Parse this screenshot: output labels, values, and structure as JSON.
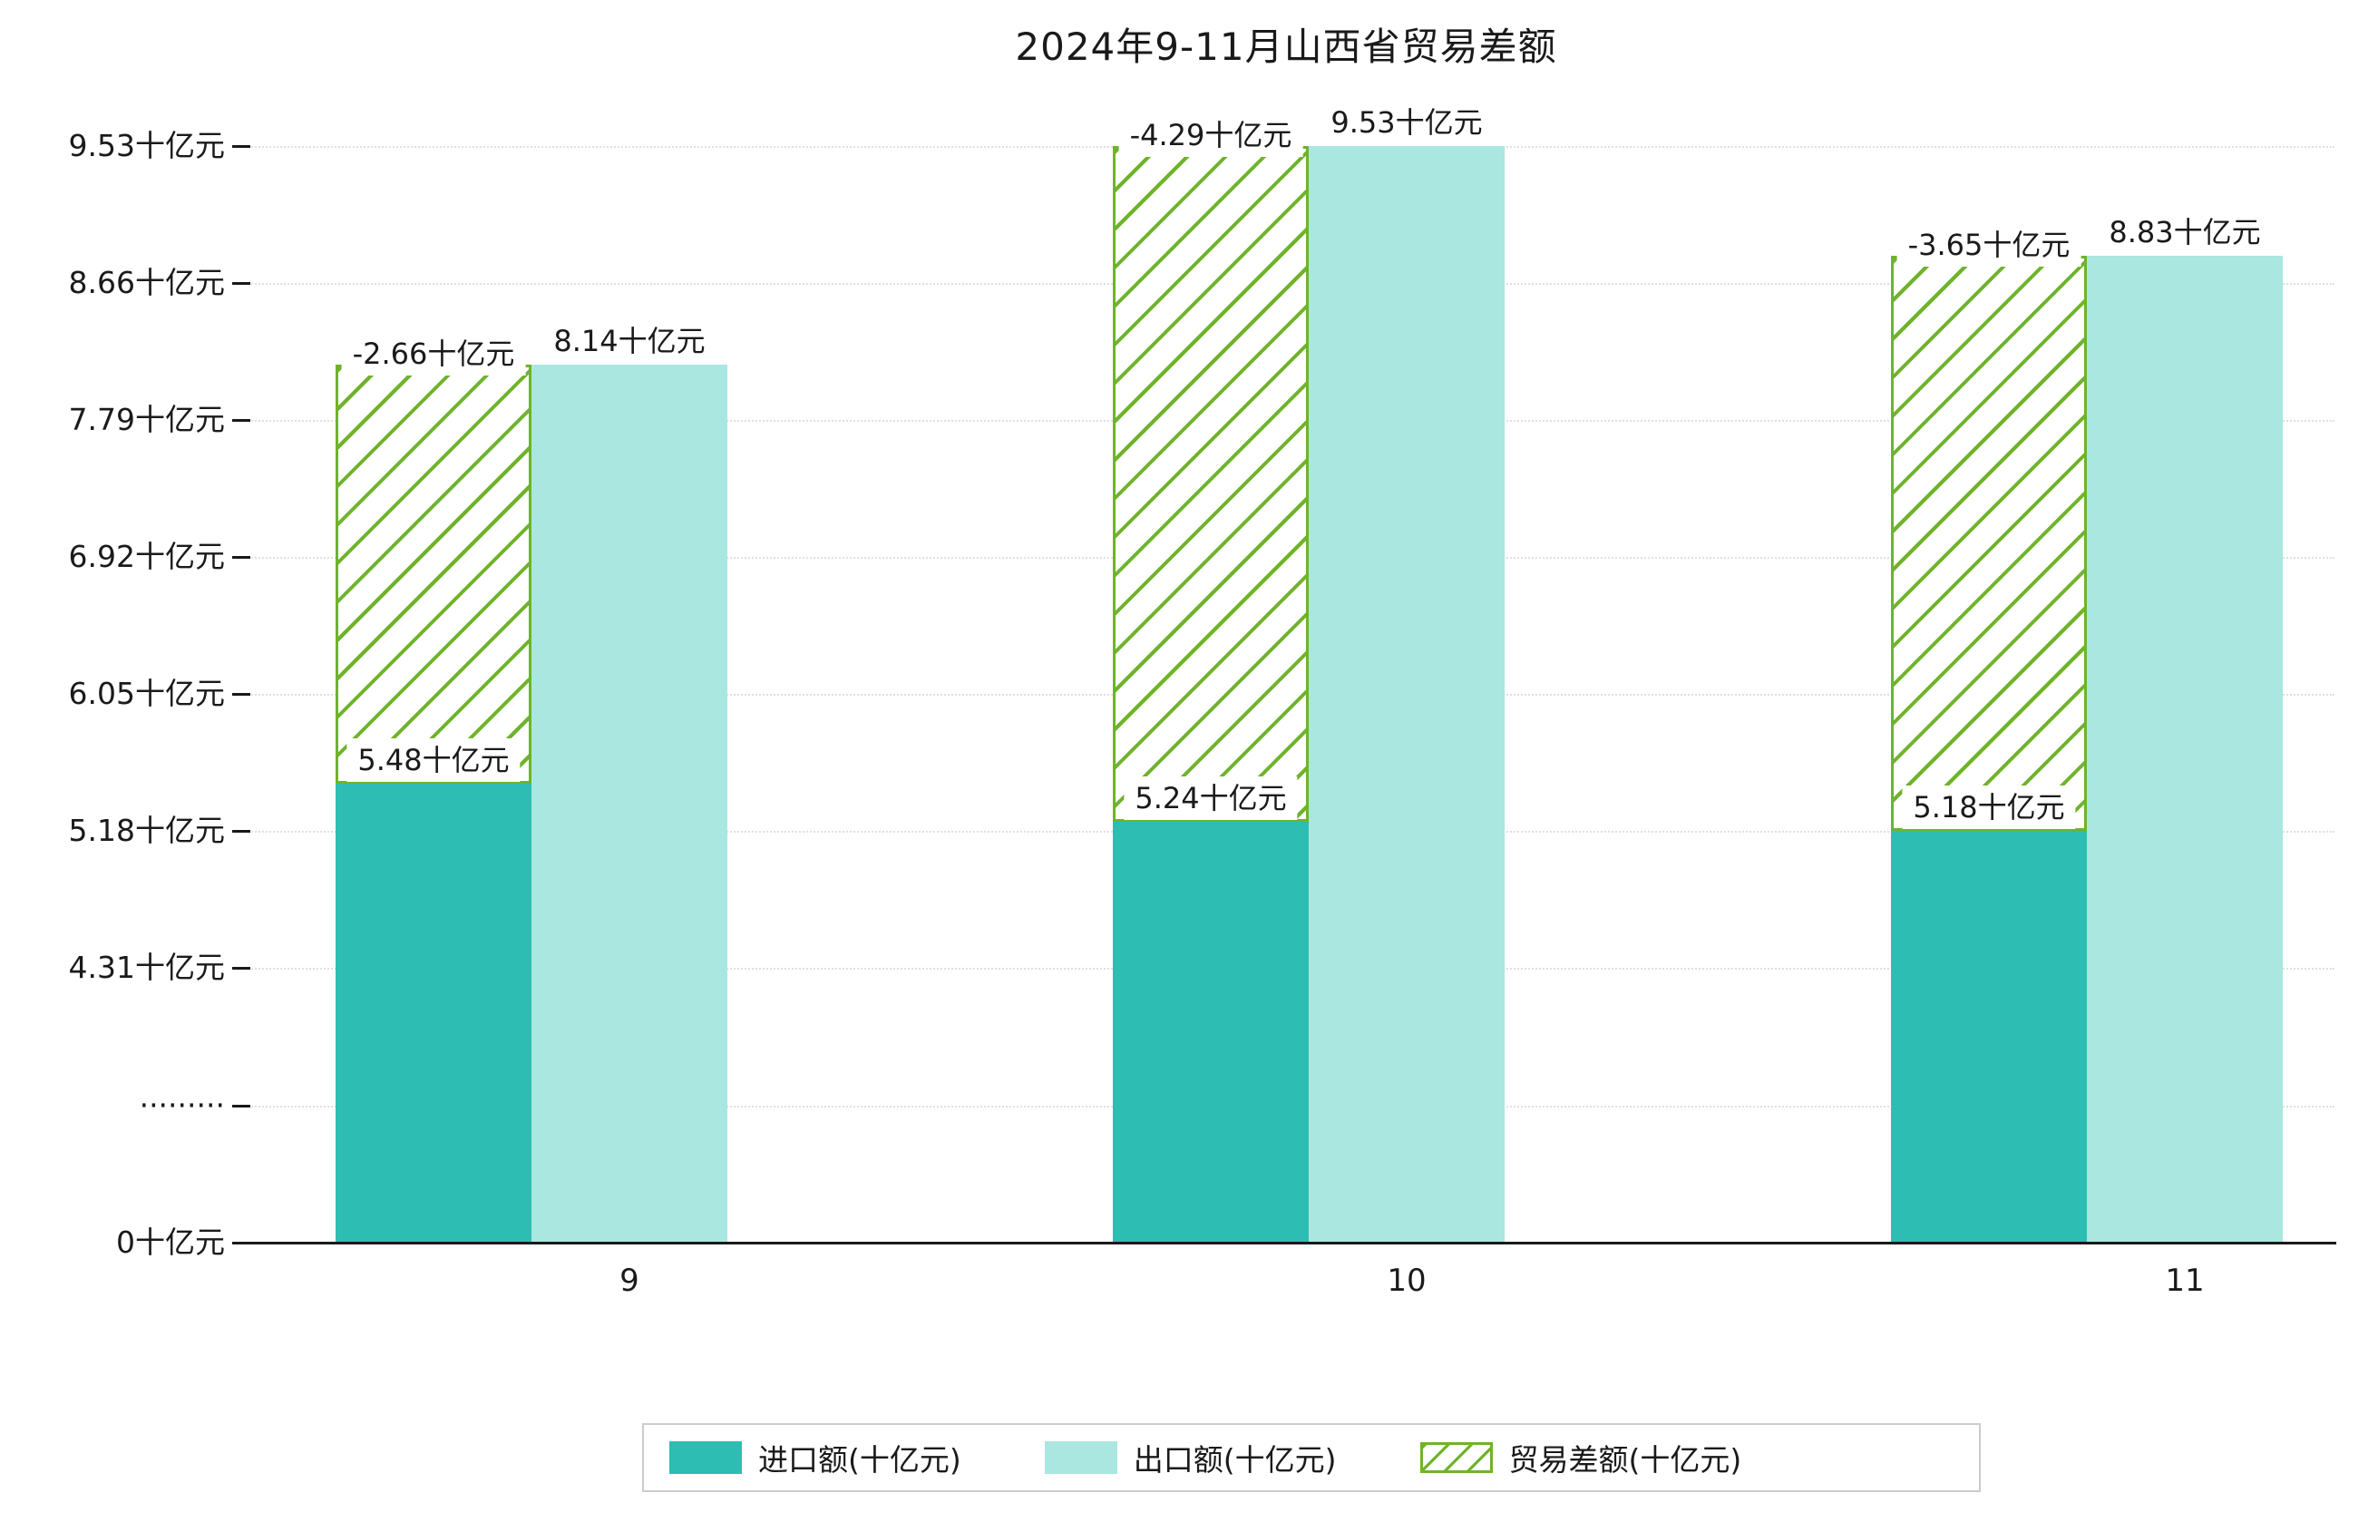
{
  "title": "2024年9-11月山西省贸易差额",
  "chart_data": {
    "type": "bar",
    "title": "2024年9-11月山西省贸易差额",
    "categories": [
      "9",
      "10",
      "11"
    ],
    "series": [
      {
        "name": "进口额(十亿元)",
        "role": "import",
        "values": [
          5.48,
          5.24,
          5.18
        ],
        "data_labels": [
          "5.48十亿元",
          "5.24十亿元",
          "5.18十亿元"
        ],
        "style": "solid"
      },
      {
        "name": "出口额(十亿元)",
        "role": "export",
        "values": [
          8.14,
          9.53,
          8.83
        ],
        "data_labels": [
          "8.14十亿元",
          "9.53十亿元",
          "8.83十亿元"
        ],
        "style": "solid"
      },
      {
        "name": "贸易差额(十亿元)",
        "role": "trade-balance",
        "values": [
          -2.66,
          -4.29,
          -3.65
        ],
        "data_labels": [
          "-2.66十亿元",
          "-4.29十亿元",
          "-3.65十亿元"
        ],
        "style": "hatched",
        "render": "stacked-from-import-top-to-export-top"
      }
    ],
    "y_axis": {
      "unit": "十亿元",
      "axis_break": true,
      "ticks": [
        {
          "label": "0十亿元",
          "value": 0
        },
        {
          "label": "·········",
          "value": null
        },
        {
          "label": "4.31十亿元",
          "value": 4.31
        },
        {
          "label": "5.18十亿元",
          "value": 5.18
        },
        {
          "label": "6.05十亿元",
          "value": 6.05
        },
        {
          "label": "6.92十亿元",
          "value": 6.92
        },
        {
          "label": "7.79十亿元",
          "value": 7.79
        },
        {
          "label": "8.66十亿元",
          "value": 8.66
        },
        {
          "label": "9.53十亿元",
          "value": 9.53
        }
      ]
    },
    "legend": {
      "position": "bottom",
      "entries": [
        {
          "label": "进口额(十亿元)",
          "swatch": "solid-teal"
        },
        {
          "label": "出口额(十亿元)",
          "swatch": "solid-light-cyan"
        },
        {
          "label": "贸易差额(十亿元)",
          "swatch": "green-hatched"
        }
      ]
    },
    "colors": {
      "import": "#2dbdb2",
      "export": "#a9e7e0",
      "balance_hatch": "#6fb32b",
      "grid": "#dcdcdc",
      "axis": "#1a1a1a",
      "background": "#ffffff"
    },
    "grid": "dotted-horizontal",
    "legend_position": "bottom-center"
  }
}
